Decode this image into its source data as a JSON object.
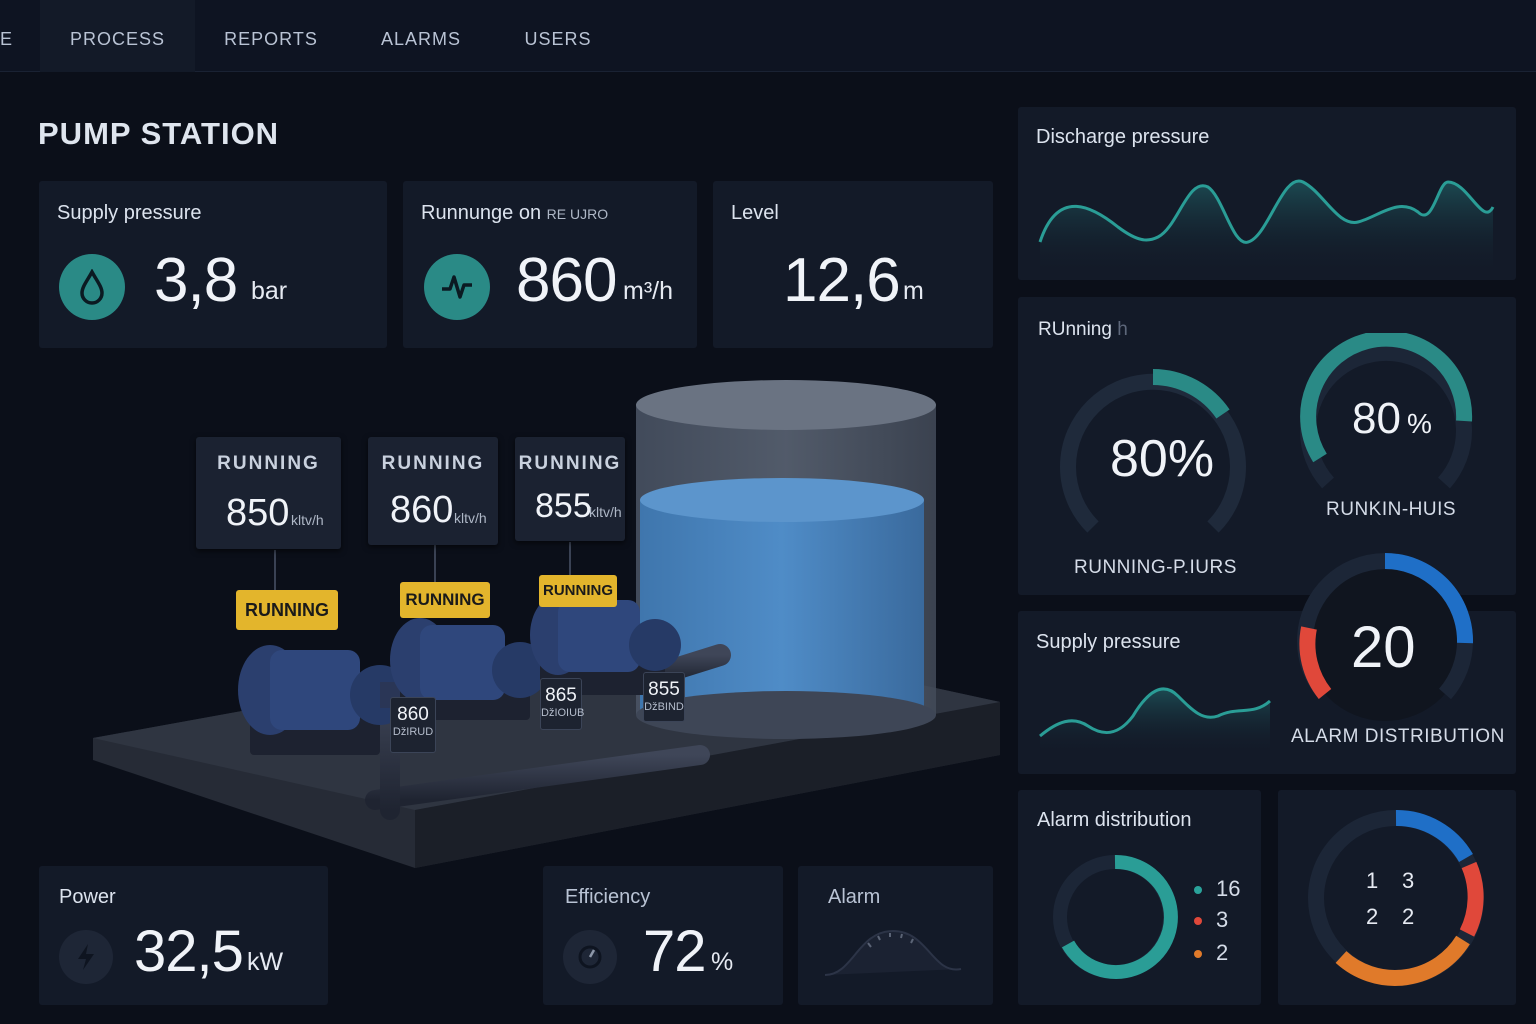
{
  "nav": {
    "tabs": [
      {
        "label": "E"
      },
      {
        "label": "PROCESS",
        "active": true
      },
      {
        "label": "REPORTS"
      },
      {
        "label": "ALARMS"
      },
      {
        "label": "USERS"
      }
    ]
  },
  "page": {
    "title": "PUMP STATION"
  },
  "kpis": {
    "supply": {
      "title": "Supply pressure",
      "value": "3,8",
      "unit": "bar",
      "icon": "water-drop-icon"
    },
    "flow": {
      "title": "Runnunge on",
      "title_suffix": "RE UJRO",
      "value": "860",
      "unit": "m³/h",
      "icon": "waveform-icon"
    },
    "level": {
      "title": "Level",
      "value": "12,6",
      "unit": "m"
    }
  },
  "pumps": [
    {
      "status": "RUNNING",
      "value": "850",
      "unit": "kltv/h",
      "badge": "RUNNING",
      "plate_value": "860",
      "plate_unit": "ǅIRUD"
    },
    {
      "status": "RUNNING",
      "value": "860",
      "unit": "kltv/h",
      "badge": "RUNNING",
      "plate_value": "865",
      "plate_unit": "ǅIOIUB"
    },
    {
      "status": "RUNNING",
      "value": "855",
      "unit": "kltv/h",
      "badge": "RUNNING",
      "plate_value": "855",
      "plate_unit": "ǅBIND"
    }
  ],
  "tank": {
    "level_fraction": 0.72
  },
  "bottom": {
    "power": {
      "title": "Power",
      "value": "32,5",
      "unit": "kW",
      "icon": "lightning-icon"
    },
    "efficiency": {
      "title": "Efficiency",
      "value": "72",
      "unit": "%",
      "icon": "speedometer-icon"
    },
    "alarm": {
      "title": "Alarm",
      "icon": "dial-gauge-icon"
    }
  },
  "right": {
    "discharge": {
      "title": "Discharge pressure"
    },
    "running": {
      "title": "RUnning",
      "title_suffix": "h",
      "gauge1": {
        "value": "80%",
        "label": "RUNNING-P.IURS",
        "fraction": 0.8
      },
      "gauge2": {
        "value": "80",
        "unit": "%",
        "label": "RUNKIN-HUIS",
        "fraction": 0.8
      }
    },
    "supply_trend": {
      "title": "Supply pressure"
    },
    "alarm_gauge": {
      "value": "20",
      "label": "ALARM DISTRIBUTION"
    },
    "alarm_dist": {
      "title": "Alarm distribution",
      "legend": [
        {
          "value": "16",
          "color": "#2aa39b"
        },
        {
          "value": "3",
          "color": "#e0483a"
        },
        {
          "value": "2",
          "color": "#e07a2a"
        }
      ]
    },
    "donut2": {
      "cells": [
        "1",
        "3",
        "2",
        "2"
      ]
    }
  },
  "colors": {
    "teal": "#2a9d96",
    "blue": "#1f6fc7",
    "red": "#e0483a",
    "orange": "#e07a2a",
    "badge": "#e3b52c"
  }
}
